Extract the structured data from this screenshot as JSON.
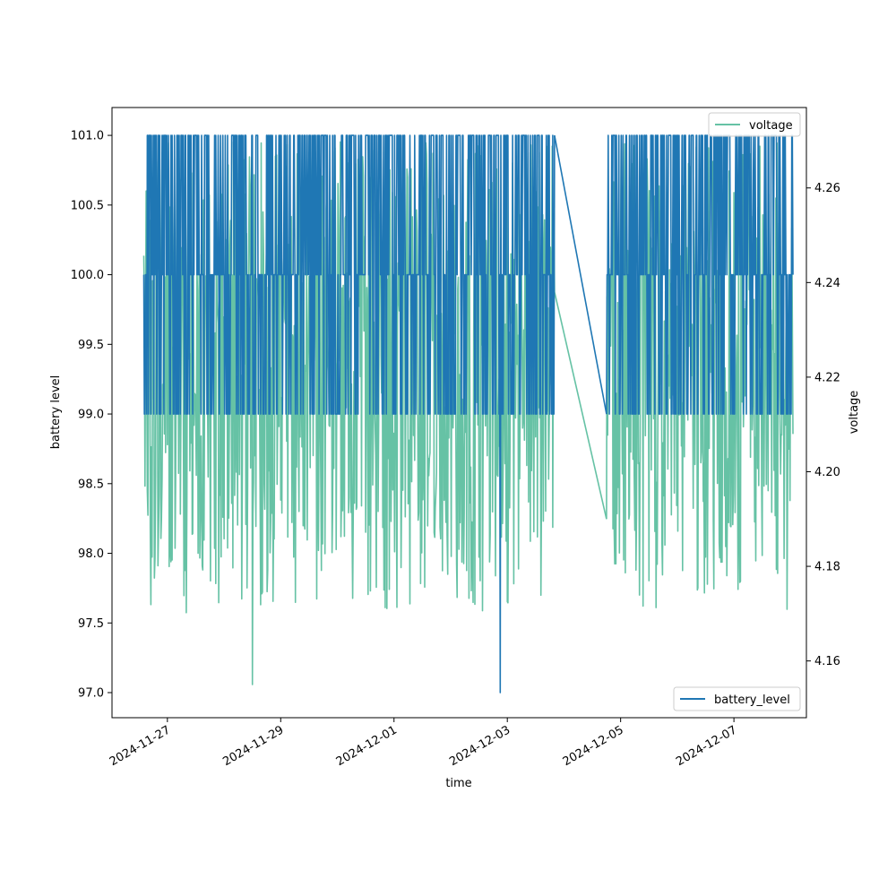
{
  "chart_data": {
    "type": "line",
    "xlabel": "time",
    "ylabel_left": "battery level",
    "ylabel_right": "voltage",
    "x_ticks": [
      "2024-11-27",
      "2024-11-29",
      "2024-12-01",
      "2024-12-03",
      "2024-12-05",
      "2024-12-07"
    ],
    "y_ticks_left": [
      "97.0",
      "97.5",
      "98.0",
      "98.5",
      "99.0",
      "99.5",
      "100.0",
      "100.5",
      "101.0"
    ],
    "y_ticks_right": [
      "4.16",
      "4.18",
      "4.20",
      "4.22",
      "4.24",
      "4.26"
    ],
    "xlim": [
      "2024-11-26 00:32",
      "2024-12-08 06:42"
    ],
    "ylim_left": [
      96.82,
      101.2
    ],
    "ylim_right": [
      4.148,
      4.277
    ],
    "grid": false,
    "time_range": {
      "start": "2024-11-26 14:00",
      "gap_start": "2024-12-03 20:00",
      "gap_end": "2024-12-04 18:00",
      "end": "2024-12-08 01:00"
    },
    "series": [
      {
        "name": "battery_level",
        "axis": "left",
        "color": "#1f77b4",
        "legend_position": "lower-right",
        "levels": [
          99,
          100,
          101
        ],
        "typical_low": 99,
        "max": 101,
        "min": 97.0,
        "min_time": "2024-12-02 21:00",
        "gap_start_value": 101,
        "gap_end_value": 99
      },
      {
        "name": "voltage",
        "axis": "right",
        "color": "#66c2a5",
        "legend_position": "upper-right",
        "typical_range": [
          4.17,
          4.27
        ],
        "min": 4.155,
        "min_time": "2024-11-28 12:00",
        "gap_start_value": 4.238,
        "gap_end_value": 4.19
      }
    ]
  }
}
